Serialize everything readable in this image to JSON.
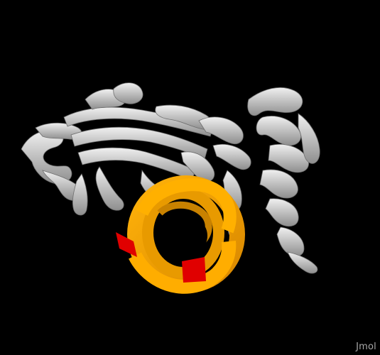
{
  "viewer": {
    "background": "#000000",
    "watermark": "Jmol"
  },
  "molecule": {
    "style": "cartoon",
    "colors": {
      "protein_chain": "#d8d8d8",
      "protein_shade": "#9a9a9a",
      "highlight_helix": "#f5a500",
      "highlight_shade": "#c77f00",
      "highlight_terminus": "#e00000"
    }
  }
}
